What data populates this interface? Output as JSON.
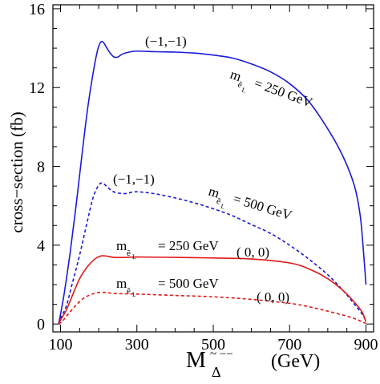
{
  "chart_data": {
    "type": "line",
    "xlabel_main": "M",
    "xlabel_sub": "Δ",
    "xlabel_sup": "~ −−",
    "xlabel_unit": "(GeV)",
    "ylabel": "cross−section (fb)",
    "xlim": [
      80,
      920
    ],
    "ylim": [
      -0.4,
      16.2
    ],
    "x_ticks": [
      100,
      300,
      500,
      700,
      900
    ],
    "x_tick_labels": [
      "100",
      "300",
      "500",
      "700",
      "900"
    ],
    "y_ticks": [
      0,
      4,
      8,
      12,
      16
    ],
    "y_tick_labels": [
      "0",
      "4",
      "8",
      "12",
      "16"
    ],
    "grid": false,
    "legend": "none",
    "series": [
      {
        "color": "#1a1adb",
        "dash": "solid",
        "points": [
          [
            95,
            0
          ],
          [
            100,
            0.5
          ],
          [
            110,
            1.6
          ],
          [
            125,
            3.6
          ],
          [
            140,
            5.9
          ],
          [
            155,
            8.4
          ],
          [
            170,
            10.8
          ],
          [
            185,
            12.7
          ],
          [
            197,
            13.9
          ],
          [
            205,
            14.3
          ],
          [
            212,
            14.3
          ],
          [
            220,
            14.05
          ],
          [
            230,
            13.75
          ],
          [
            240,
            13.55
          ],
          [
            250,
            13.55
          ],
          [
            262,
            13.7
          ],
          [
            280,
            13.8
          ],
          [
            300,
            13.85
          ],
          [
            350,
            13.82
          ],
          [
            400,
            13.8
          ],
          [
            450,
            13.75
          ],
          [
            500,
            13.65
          ],
          [
            550,
            13.5
          ],
          [
            600,
            13.2
          ],
          [
            650,
            12.8
          ],
          [
            700,
            12.2
          ],
          [
            750,
            11.3
          ],
          [
            800,
            9.9
          ],
          [
            840,
            8.5
          ],
          [
            870,
            7.0
          ],
          [
            885,
            5.5
          ],
          [
            893,
            3.8
          ],
          [
            900,
            2.0
          ]
        ]
      },
      {
        "color": "#1a1adb",
        "dash": "dashed",
        "points": [
          [
            95,
            0
          ],
          [
            100,
            0.3
          ],
          [
            115,
            0.9
          ],
          [
            130,
            2.0
          ],
          [
            150,
            3.5
          ],
          [
            170,
            5.2
          ],
          [
            185,
            6.4
          ],
          [
            200,
            7.05
          ],
          [
            210,
            7.15
          ],
          [
            220,
            7.0
          ],
          [
            235,
            6.75
          ],
          [
            250,
            6.65
          ],
          [
            270,
            6.62
          ],
          [
            290,
            6.7
          ],
          [
            310,
            6.7
          ],
          [
            350,
            6.6
          ],
          [
            400,
            6.4
          ],
          [
            450,
            6.15
          ],
          [
            500,
            5.85
          ],
          [
            550,
            5.5
          ],
          [
            600,
            5.05
          ],
          [
            650,
            4.6
          ],
          [
            700,
            4.0
          ],
          [
            750,
            3.3
          ],
          [
            800,
            2.5
          ],
          [
            840,
            1.7
          ],
          [
            870,
            1.0
          ],
          [
            890,
            0.5
          ],
          [
            900,
            0.15
          ]
        ]
      },
      {
        "color": "#e01818",
        "dash": "solid",
        "points": [
          [
            95,
            0
          ],
          [
            100,
            0.2
          ],
          [
            115,
            0.7
          ],
          [
            130,
            1.4
          ],
          [
            150,
            2.3
          ],
          [
            170,
            2.9
          ],
          [
            190,
            3.3
          ],
          [
            205,
            3.45
          ],
          [
            220,
            3.45
          ],
          [
            240,
            3.38
          ],
          [
            270,
            3.38
          ],
          [
            300,
            3.4
          ],
          [
            400,
            3.38
          ],
          [
            500,
            3.35
          ],
          [
            600,
            3.3
          ],
          [
            700,
            3.1
          ],
          [
            750,
            2.8
          ],
          [
            800,
            2.3
          ],
          [
            840,
            1.7
          ],
          [
            870,
            1.1
          ],
          [
            890,
            0.6
          ],
          [
            900,
            0.1
          ]
        ]
      },
      {
        "color": "#e01818",
        "dash": "dashed",
        "points": [
          [
            95,
            0
          ],
          [
            105,
            0.15
          ],
          [
            120,
            0.5
          ],
          [
            140,
            0.95
          ],
          [
            160,
            1.3
          ],
          [
            180,
            1.5
          ],
          [
            200,
            1.6
          ],
          [
            220,
            1.6
          ],
          [
            240,
            1.55
          ],
          [
            300,
            1.52
          ],
          [
            400,
            1.45
          ],
          [
            500,
            1.38
          ],
          [
            600,
            1.25
          ],
          [
            700,
            1.05
          ],
          [
            750,
            0.88
          ],
          [
            800,
            0.65
          ],
          [
            850,
            0.4
          ],
          [
            880,
            0.2
          ],
          [
            900,
            0.02
          ]
        ]
      }
    ],
    "annotations": [
      {
        "text": "(−1,−1)",
        "color": "#000000"
      },
      {
        "text": "m",
        "sub": "ẽ",
        "subsub": "L",
        "value_text": "= 250 GeV"
      },
      {
        "text": "(−1,−1)",
        "color": "#000000"
      },
      {
        "text": "m",
        "sub": "ẽ",
        "subsub": "L",
        "value_text": "= 500 GeV"
      },
      {
        "text": "m",
        "sub": "ẽ",
        "subsub": "L",
        "value_text": "= 250 GeV"
      },
      {
        "text": "( 0, 0)"
      },
      {
        "text": "m",
        "sub": "ẽ",
        "subsub": "L",
        "value_text": "= 500 GeV"
      },
      {
        "text": "( 0, 0)"
      }
    ]
  }
}
